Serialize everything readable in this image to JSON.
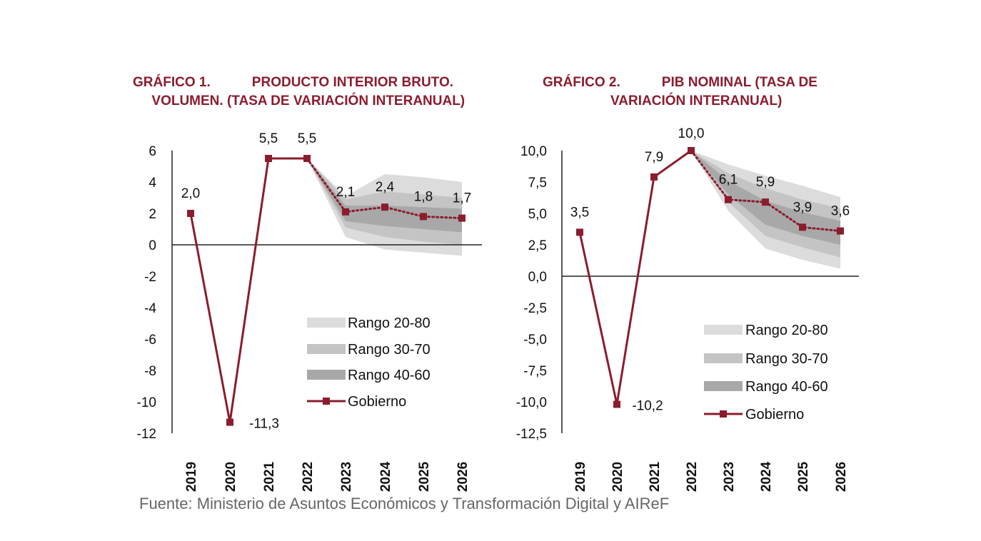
{
  "colors": {
    "title": "#8b1c2e",
    "line": "#8b1c2e",
    "band_20_80": "#dcdcdc",
    "band_30_70": "#c4c4c4",
    "band_40_60": "#a8a8a8"
  },
  "source": "Fuente: Ministerio de Asuntos Económicos y Transformación Digital y AIReF",
  "chart_data": [
    {
      "type": "line",
      "title_lines": [
        "GRÁFICO 1.           PRODUCTO INTERIOR BRUTO.",
        "     VOLUMEN. (TASA DE VARIACIÓN INTERANUAL)"
      ],
      "categories": [
        "2019",
        "2020",
        "2021",
        "2022",
        "2023",
        "2024",
        "2025",
        "2026"
      ],
      "ylim": [
        -12,
        6
      ],
      "yticks": [
        6,
        4,
        2,
        0,
        -2,
        -4,
        -6,
        -8,
        -10,
        -12
      ],
      "ytick_labels": [
        "6",
        "4",
        "2",
        "0",
        "-2",
        "-4",
        "-6",
        "-8",
        "-10",
        "-12"
      ],
      "series": [
        {
          "name": "Gobierno",
          "values": [
            2.0,
            -11.3,
            5.5,
            5.5,
            2.1,
            2.4,
            1.8,
            1.7
          ],
          "labels": [
            "2,0",
            "-11,3",
            "5,5",
            "5,5",
            "2,1",
            "2,4",
            "1,8",
            "1,7"
          ]
        }
      ],
      "bands": [
        {
          "name": "Rango 20-80",
          "start_index": 3,
          "lower": [
            5.5,
            0.5,
            -0.3,
            -0.5,
            -0.7
          ],
          "upper": [
            5.5,
            3.1,
            4.5,
            4.3,
            4.0
          ]
        },
        {
          "name": "Rango 30-70",
          "start_index": 3,
          "lower": [
            5.5,
            1.1,
            0.5,
            0.2,
            0.0
          ],
          "upper": [
            5.5,
            2.9,
            3.4,
            3.2,
            3.0
          ]
        },
        {
          "name": "Rango 40-60",
          "start_index": 3,
          "lower": [
            5.5,
            1.5,
            1.2,
            1.0,
            0.8
          ],
          "upper": [
            5.5,
            2.5,
            2.5,
            2.4,
            2.3
          ]
        }
      ],
      "legend": [
        "Rango 20-80",
        "Rango 30-70",
        "Rango 40-60",
        "Gobierno"
      ]
    },
    {
      "type": "line",
      "title_lines": [
        "GRÁFICO 2.           PIB NOMINAL (TASA DE",
        "                  VARIACIÓN INTERANUAL)"
      ],
      "categories": [
        "2019",
        "2020",
        "2021",
        "2022",
        "2023",
        "2024",
        "2025",
        "2026"
      ],
      "ylim": [
        -12.5,
        10.0
      ],
      "yticks": [
        10.0,
        7.5,
        5.0,
        2.5,
        0.0,
        -2.5,
        -5.0,
        -7.5,
        -10.0,
        -12.5
      ],
      "ytick_labels": [
        "10,0",
        "7,5",
        "5,0",
        "2,5",
        "0,0",
        "-2,5",
        "-5,0",
        "-7,5",
        "-10,0",
        "-12,5"
      ],
      "series": [
        {
          "name": "Gobierno",
          "values": [
            3.5,
            -10.2,
            7.9,
            10.0,
            6.1,
            5.9,
            3.9,
            3.6
          ],
          "labels": [
            "3,5",
            "-10,2",
            "7,9",
            "10,0",
            "6,1",
            "5,9",
            "3,9",
            "3,6"
          ]
        }
      ],
      "bands": [
        {
          "name": "Rango 20-80",
          "start_index": 3,
          "lower": [
            10.0,
            5.2,
            2.2,
            1.3,
            0.6
          ],
          "upper": [
            10.0,
            8.9,
            8.0,
            7.2,
            6.3
          ]
        },
        {
          "name": "Rango 30-70",
          "start_index": 3,
          "lower": [
            10.0,
            5.9,
            3.2,
            2.3,
            1.5
          ],
          "upper": [
            10.0,
            8.2,
            7.0,
            6.1,
            5.4
          ]
        },
        {
          "name": "Rango 40-60",
          "start_index": 3,
          "lower": [
            10.0,
            6.5,
            4.1,
            3.2,
            2.5
          ],
          "upper": [
            10.0,
            7.6,
            6.0,
            5.1,
            4.4
          ]
        }
      ],
      "legend": [
        "Rango 20-80",
        "Rango 30-70",
        "Rango 40-60",
        "Gobierno"
      ]
    }
  ]
}
